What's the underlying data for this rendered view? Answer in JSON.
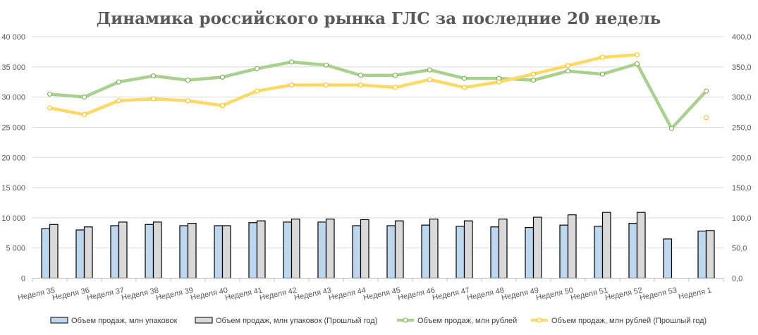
{
  "chart_data": {
    "type": "bar+line",
    "title": "Динамика российского рынка ГЛС за последние 20 недель",
    "categories": [
      "Неделя 35",
      "Неделя 36",
      "Неделя 37",
      "Неделя 38",
      "Неделя 39",
      "Неделя 40",
      "Неделя 41",
      "Неделя 42",
      "Неделя 43",
      "Неделя 44",
      "Неделя 45",
      "Неделя 46",
      "Неделя 47",
      "Неделя 48",
      "Неделя 49",
      "Неделя 50",
      "Неделя 51",
      "Неделя 52",
      "Неделя 53",
      "Неделя 1"
    ],
    "y_left": {
      "range": [
        0,
        40000
      ],
      "ticks": [
        "0",
        "5 000",
        "10 000",
        "15 000",
        "20 000",
        "25 000",
        "30 000",
        "35 000",
        "40 000"
      ]
    },
    "y_right": {
      "range": [
        0,
        400
      ],
      "ticks": [
        "0,0",
        "50,0",
        "100,0",
        "150,0",
        "200,0",
        "250,0",
        "300,0",
        "350,0",
        "400,0"
      ]
    },
    "grid": true,
    "legend_position": "bottom",
    "series": [
      {
        "name": "Объем продаж, млн упаковок",
        "type": "bar",
        "axis": "left",
        "color": "#BDD7EE",
        "values": [
          8200,
          8000,
          8700,
          8900,
          8700,
          8700,
          9200,
          9300,
          9300,
          8700,
          8700,
          8800,
          8600,
          8500,
          8400,
          8800,
          8600,
          9100,
          6500,
          7800
        ]
      },
      {
        "name": "Объем продаж, млн упаковок (Прошлый год)",
        "type": "bar",
        "axis": "left",
        "color": "#D9D9D9",
        "values": [
          8900,
          8500,
          9300,
          9300,
          9100,
          8700,
          9500,
          9800,
          9800,
          9700,
          9500,
          9800,
          9500,
          9800,
          10100,
          10500,
          10900,
          10900,
          null,
          7900
        ]
      },
      {
        "name": "Объем продаж, млн рублей",
        "type": "line",
        "axis": "right",
        "color": "#A9D18E",
        "values": [
          305,
          300,
          325,
          335,
          328,
          333,
          347,
          358,
          353,
          336,
          336,
          345,
          331,
          331,
          328,
          343,
          338,
          355,
          248,
          310
        ]
      },
      {
        "name": "Объем продаж, млн рублей (Прошлый год)",
        "type": "line",
        "axis": "right",
        "color": "#FFD966",
        "values": [
          282,
          271,
          294,
          297,
          294,
          286,
          310,
          320,
          320,
          320,
          316,
          329,
          316,
          325,
          338,
          352,
          366,
          370,
          null,
          266
        ]
      }
    ]
  }
}
